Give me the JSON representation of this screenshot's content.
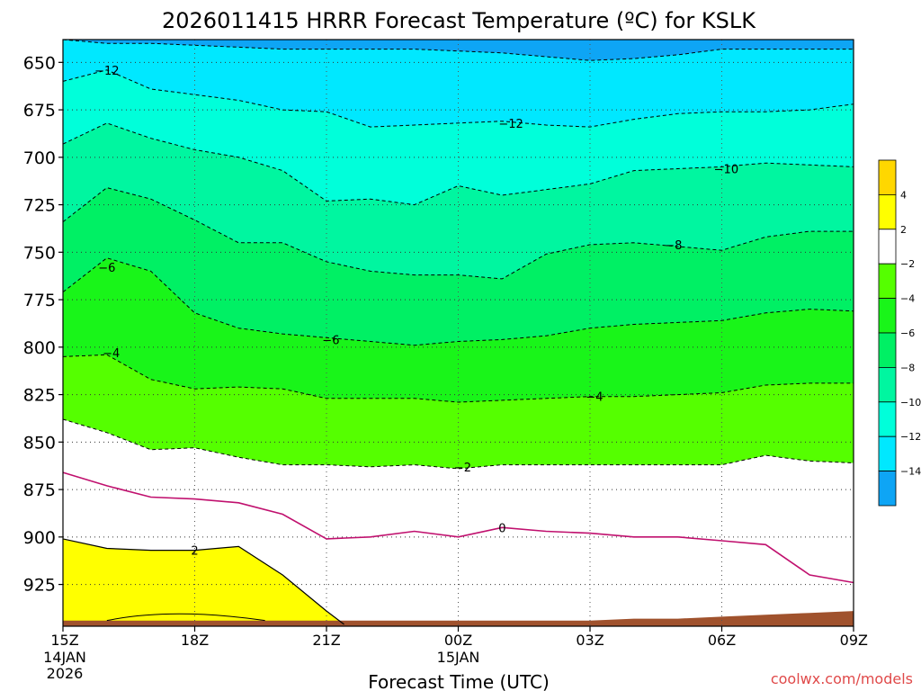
{
  "chart_data": {
    "type": "contour",
    "title": "2026011415 HRRR Forecast Temperature (ºC) for KSLK",
    "xlabel": "Forecast Time (UTC)",
    "ylabel": "",
    "x_ticks": [
      {
        "hour": 0,
        "label": "15Z",
        "sub1": "14JAN",
        "sub2": "2026"
      },
      {
        "hour": 3,
        "label": "18Z",
        "sub1": "",
        "sub2": ""
      },
      {
        "hour": 6,
        "label": "21Z",
        "sub1": "",
        "sub2": ""
      },
      {
        "hour": 9,
        "label": "00Z",
        "sub1": "15JAN",
        "sub2": ""
      },
      {
        "hour": 12,
        "label": "03Z",
        "sub1": "",
        "sub2": ""
      },
      {
        "hour": 15,
        "label": "06Z",
        "sub1": "",
        "sub2": ""
      },
      {
        "hour": 18,
        "label": "09Z",
        "sub1": "",
        "sub2": ""
      }
    ],
    "xlim": [
      0,
      18
    ],
    "y_ticks": [
      650,
      675,
      700,
      725,
      750,
      775,
      800,
      825,
      850,
      875,
      900,
      925
    ],
    "ylim": [
      638,
      947
    ],
    "hours": [
      0,
      1,
      2,
      3,
      4,
      5,
      6,
      7,
      8,
      9,
      10,
      11,
      12,
      13,
      14,
      15,
      16,
      17,
      18
    ],
    "isotherms": [
      {
        "level": -14,
        "pressure": [
          638,
          640,
          640,
          641,
          642,
          643,
          643,
          643,
          643,
          644,
          645,
          647,
          649,
          648,
          646,
          643,
          643,
          643,
          643
        ]
      },
      {
        "level": -12,
        "pressure": [
          660,
          654,
          664,
          667,
          670,
          675,
          676,
          684,
          683,
          682,
          681,
          683,
          684,
          680,
          677,
          676,
          676,
          675,
          672
        ]
      },
      {
        "level": -10,
        "pressure": [
          693,
          682,
          690,
          696,
          700,
          707,
          723,
          722,
          725,
          715,
          720,
          717,
          714,
          707,
          706,
          705,
          703,
          704,
          705
        ]
      },
      {
        "level": -8,
        "pressure": [
          734,
          716,
          722,
          733,
          745,
          745,
          755,
          760,
          762,
          762,
          764,
          751,
          746,
          745,
          747,
          749,
          742,
          739,
          739
        ]
      },
      {
        "level": -6,
        "pressure": [
          771,
          753,
          760,
          782,
          790,
          793,
          795,
          797,
          799,
          797,
          796,
          794,
          790,
          788,
          787,
          786,
          782,
          780,
          781
        ]
      },
      {
        "level": -4,
        "pressure": [
          805,
          804,
          817,
          822,
          821,
          822,
          827,
          827,
          827,
          829,
          828,
          827,
          826,
          826,
          825,
          824,
          820,
          819,
          819
        ]
      },
      {
        "level": -2,
        "pressure": [
          838,
          845,
          854,
          853,
          858,
          862,
          862,
          863,
          862,
          864,
          862,
          862,
          862,
          862,
          862,
          862,
          857,
          860,
          861
        ]
      },
      {
        "level": 0,
        "pressure": [
          866,
          873,
          879,
          880,
          882,
          888,
          901,
          900,
          897,
          900,
          895,
          897,
          898,
          900,
          900,
          902,
          904,
          920,
          924
        ]
      }
    ],
    "warm_region_2C": {
      "hours": [
        0,
        1,
        2,
        3,
        4,
        5,
        6,
        6.4
      ],
      "top_pressure": [
        901,
        906,
        907,
        907,
        905,
        920,
        939,
        946
      ]
    },
    "inline_labels": [
      {
        "text": "-12",
        "hour": 1.0,
        "pressure": 654
      },
      {
        "text": "-12",
        "hour": 10.2,
        "pressure": 682
      },
      {
        "text": "-10",
        "hour": 15.1,
        "pressure": 706
      },
      {
        "text": "-8",
        "hour": 13.9,
        "pressure": 746
      },
      {
        "text": "-6",
        "hour": 1.0,
        "pressure": 758
      },
      {
        "text": "-6",
        "hour": 6.1,
        "pressure": 796
      },
      {
        "text": "-4",
        "hour": 1.1,
        "pressure": 803
      },
      {
        "text": "-4",
        "hour": 12.1,
        "pressure": 826
      },
      {
        "text": "-2",
        "hour": 9.1,
        "pressure": 863
      },
      {
        "text": "0",
        "hour": 10.0,
        "pressure": 895
      },
      {
        "text": "2",
        "hour": 3.0,
        "pressure": 907
      }
    ],
    "ground_pressure": [
      944,
      944,
      944,
      944,
      944,
      944,
      944,
      944,
      944,
      944,
      944,
      944,
      944,
      943,
      943,
      942,
      941,
      940,
      939
    ],
    "colorbar": [
      {
        "color": "#0ea5f5",
        "label": "-14"
      },
      {
        "color": "#00e8ff",
        "label": "-12"
      },
      {
        "color": "#00ffda",
        "label": "-10"
      },
      {
        "color": "#00f6a0",
        "label": "-8"
      },
      {
        "color": "#00f064",
        "label": "-6"
      },
      {
        "color": "#19f519",
        "label": "-4"
      },
      {
        "color": "#55ff00",
        "label": "-2"
      },
      {
        "color": "#ffffff",
        "label": "2"
      },
      {
        "color": "#ffff00",
        "label": "4"
      },
      {
        "color": "#ffd700",
        "label": ""
      }
    ],
    "fill_colors": {
      "lt_m14": "#0ea5f5",
      "m14_m12": "#00e8ff",
      "m12_m10": "#00ffda",
      "m10_m8": "#00f6a0",
      "m8_m6": "#00f064",
      "m6_m4": "#19f519",
      "m4_m2": "#55ff00",
      "m2_2": "#ffffff",
      "gt_2": "#ffff00",
      "ground": "#a0522d"
    },
    "credit": "coolwx.com/models"
  }
}
